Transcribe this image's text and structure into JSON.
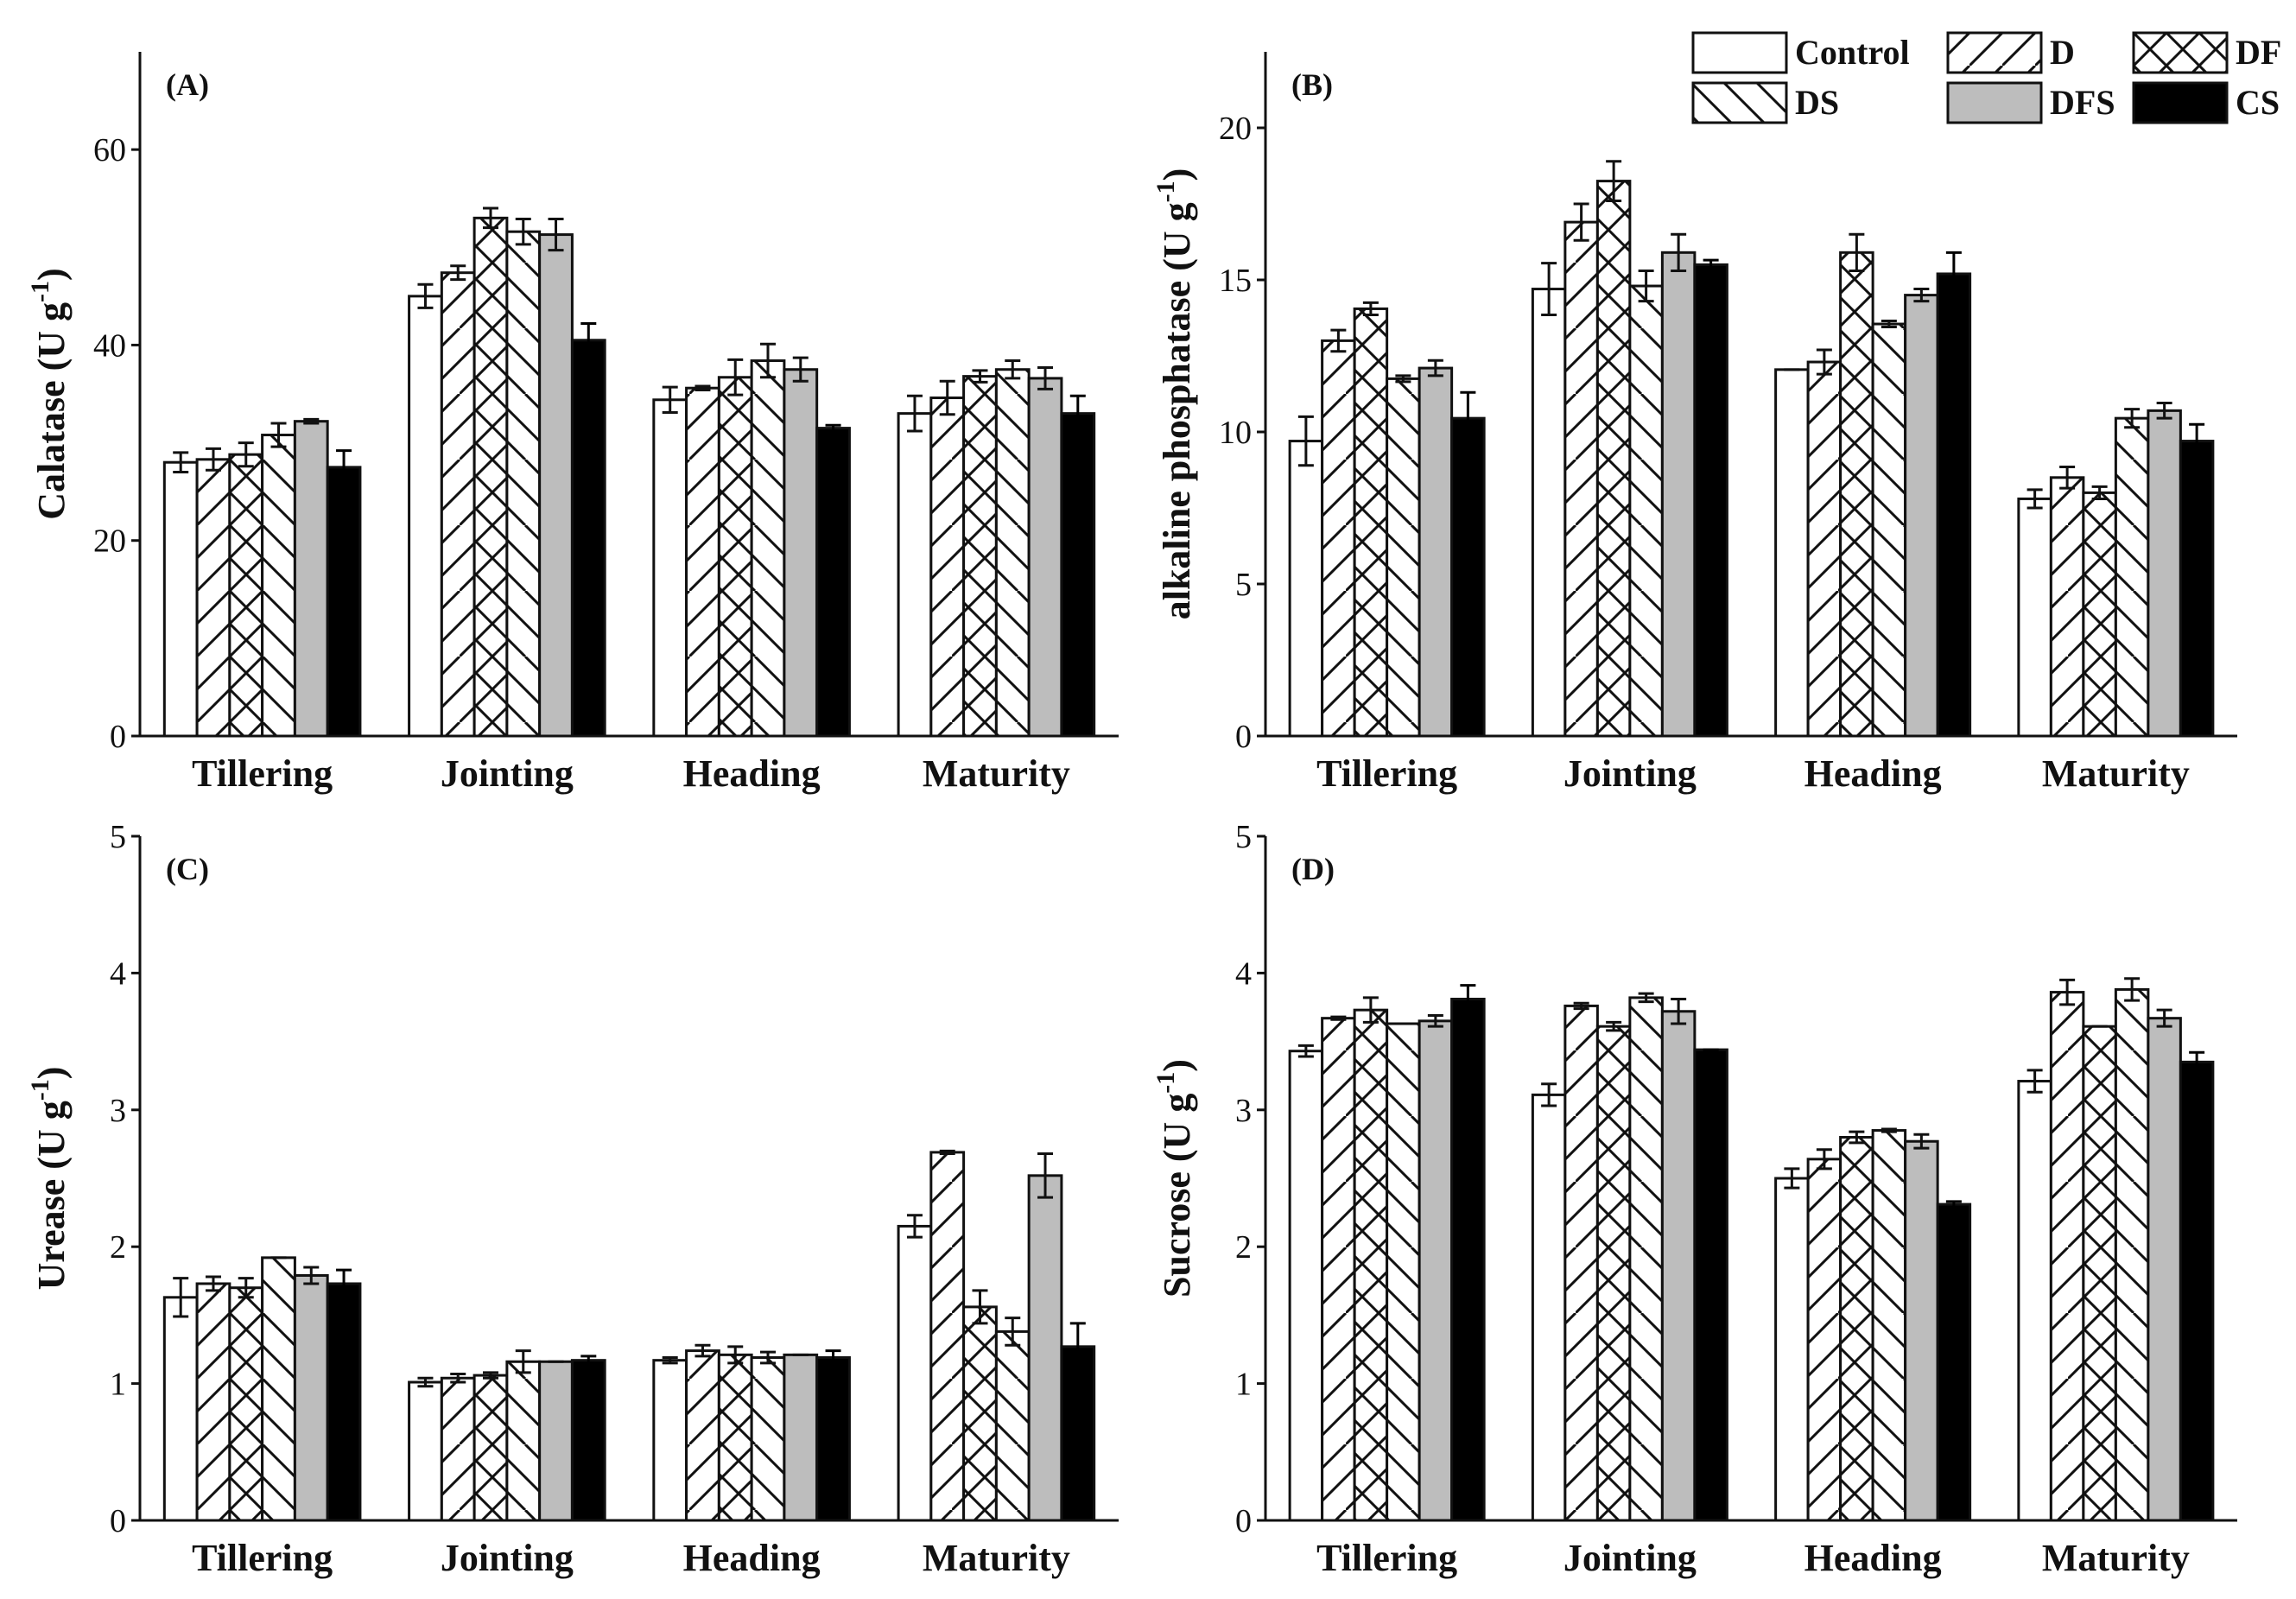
{
  "chart_data": [
    {
      "type": "bar",
      "panel_label": "(A)",
      "ylabel": "Calatase (U g",
      "ylabel_sup": "-1",
      "ylabel_end": ")",
      "ylim": [
        0,
        70
      ],
      "yticks": [
        0,
        20,
        40,
        60
      ],
      "categories": [
        "Tillering",
        "Jointing",
        "Heading",
        "Maturity"
      ],
      "series": [
        {
          "name": "Control",
          "values": [
            28.0,
            45.0,
            34.4,
            33.0
          ],
          "errors": [
            1.0,
            1.2,
            1.3,
            1.8
          ]
        },
        {
          "name": "D",
          "values": [
            28.3,
            47.4,
            35.6,
            34.6
          ],
          "errors": [
            1.1,
            0.7,
            0.2,
            1.7
          ]
        },
        {
          "name": "DF",
          "values": [
            28.8,
            53.0,
            36.7,
            36.8
          ],
          "errors": [
            1.2,
            1.0,
            1.8,
            0.6
          ]
        },
        {
          "name": "DS",
          "values": [
            30.8,
            51.6,
            38.4,
            37.5
          ],
          "errors": [
            1.2,
            1.3,
            1.7,
            0.9
          ]
        },
        {
          "name": "DFS",
          "values": [
            32.2,
            51.3,
            37.5,
            36.6
          ],
          "errors": [
            0.2,
            1.6,
            1.2,
            1.1
          ]
        },
        {
          "name": "CS",
          "values": [
            27.5,
            40.5,
            31.5,
            33.0
          ],
          "errors": [
            1.7,
            1.7,
            0.3,
            1.8
          ]
        }
      ]
    },
    {
      "type": "bar",
      "panel_label": "(B)",
      "ylabel": "alkaline phosphatase (U g",
      "ylabel_sup": "-1",
      "ylabel_end": ")",
      "ylim": [
        0,
        22.5
      ],
      "yticks": [
        0,
        5,
        10,
        15,
        20
      ],
      "categories": [
        "Tillering",
        "Jointing",
        "Heading",
        "Maturity"
      ],
      "series": [
        {
          "name": "Control",
          "values": [
            9.7,
            14.7,
            12.05,
            7.8
          ],
          "errors": [
            0.8,
            0.85,
            0.0,
            0.3
          ]
        },
        {
          "name": "D",
          "values": [
            13.0,
            16.9,
            12.3,
            8.5
          ],
          "errors": [
            0.35,
            0.6,
            0.4,
            0.35
          ]
        },
        {
          "name": "DF",
          "values": [
            14.05,
            18.25,
            15.9,
            8.0
          ],
          "errors": [
            0.2,
            0.65,
            0.6,
            0.2
          ]
        },
        {
          "name": "DS",
          "values": [
            11.75,
            14.8,
            13.55,
            10.45
          ],
          "errors": [
            0.1,
            0.5,
            0.1,
            0.3
          ]
        },
        {
          "name": "DFS",
          "values": [
            12.1,
            15.9,
            14.5,
            10.7
          ],
          "errors": [
            0.25,
            0.6,
            0.2,
            0.25
          ]
        },
        {
          "name": "CS",
          "values": [
            10.45,
            15.5,
            15.2,
            9.7
          ],
          "errors": [
            0.85,
            0.15,
            0.7,
            0.55
          ]
        }
      ]
    },
    {
      "type": "bar",
      "panel_label": "(C)",
      "ylabel": "Urease (U g",
      "ylabel_sup": "-1",
      "ylabel_end": ")",
      "ylim": [
        0,
        5
      ],
      "yticks": [
        0,
        1,
        2,
        3,
        4,
        5
      ],
      "categories": [
        "Tillering",
        "Jointing",
        "Heading",
        "Maturity"
      ],
      "series": [
        {
          "name": "Control",
          "values": [
            1.63,
            1.01,
            1.17,
            2.15
          ],
          "errors": [
            0.14,
            0.03,
            0.02,
            0.08
          ]
        },
        {
          "name": "D",
          "values": [
            1.73,
            1.04,
            1.24,
            2.69
          ],
          "errors": [
            0.05,
            0.03,
            0.04,
            0.01
          ]
        },
        {
          "name": "DF",
          "values": [
            1.7,
            1.06,
            1.21,
            1.56
          ],
          "errors": [
            0.07,
            0.02,
            0.06,
            0.12
          ]
        },
        {
          "name": "DS",
          "values": [
            1.92,
            1.16,
            1.19,
            1.38
          ],
          "errors": [
            0.0,
            0.08,
            0.04,
            0.1
          ]
        },
        {
          "name": "DFS",
          "values": [
            1.79,
            1.16,
            1.21,
            2.52
          ],
          "errors": [
            0.06,
            0.0,
            0.0,
            0.16
          ]
        },
        {
          "name": "CS",
          "values": [
            1.73,
            1.17,
            1.19,
            1.27
          ],
          "errors": [
            0.1,
            0.03,
            0.05,
            0.17
          ]
        }
      ]
    },
    {
      "type": "bar",
      "panel_label": "(D)",
      "ylabel": "Sucrose (U g",
      "ylabel_sup": "-1",
      "ylabel_end": ")",
      "ylim": [
        0,
        5
      ],
      "yticks": [
        0,
        1,
        2,
        3,
        4,
        5
      ],
      "categories": [
        "Tillering",
        "Jointing",
        "Heading",
        "Maturity"
      ],
      "series": [
        {
          "name": "Control",
          "values": [
            3.43,
            3.11,
            2.5,
            3.21
          ],
          "errors": [
            0.04,
            0.08,
            0.07,
            0.08
          ]
        },
        {
          "name": "D",
          "values": [
            3.67,
            3.76,
            2.64,
            3.86
          ],
          "errors": [
            0.01,
            0.02,
            0.07,
            0.09
          ]
        },
        {
          "name": "DF",
          "values": [
            3.73,
            3.61,
            2.8,
            3.61
          ],
          "errors": [
            0.09,
            0.03,
            0.04,
            0.0
          ]
        },
        {
          "name": "DS",
          "values": [
            3.63,
            3.82,
            2.85,
            3.88
          ],
          "errors": [
            0.0,
            0.03,
            0.01,
            0.08
          ]
        },
        {
          "name": "DFS",
          "values": [
            3.65,
            3.72,
            2.77,
            3.67
          ],
          "errors": [
            0.04,
            0.09,
            0.05,
            0.06
          ]
        },
        {
          "name": "CS",
          "values": [
            3.81,
            3.44,
            2.31,
            3.35
          ],
          "errors": [
            0.1,
            0.0,
            0.02,
            0.07
          ]
        }
      ]
    }
  ],
  "legend": {
    "placement": "top-right",
    "items": [
      "Control",
      "D",
      "DF",
      "DS",
      "DFS",
      "CS"
    ]
  },
  "colors": {
    "Control": "#ffffff",
    "D": "#ffffff",
    "DF": "#ffffff",
    "DS": "#ffffff",
    "DFS": "#bdbdbd",
    "CS": "#000000",
    "axis": "#111111"
  }
}
